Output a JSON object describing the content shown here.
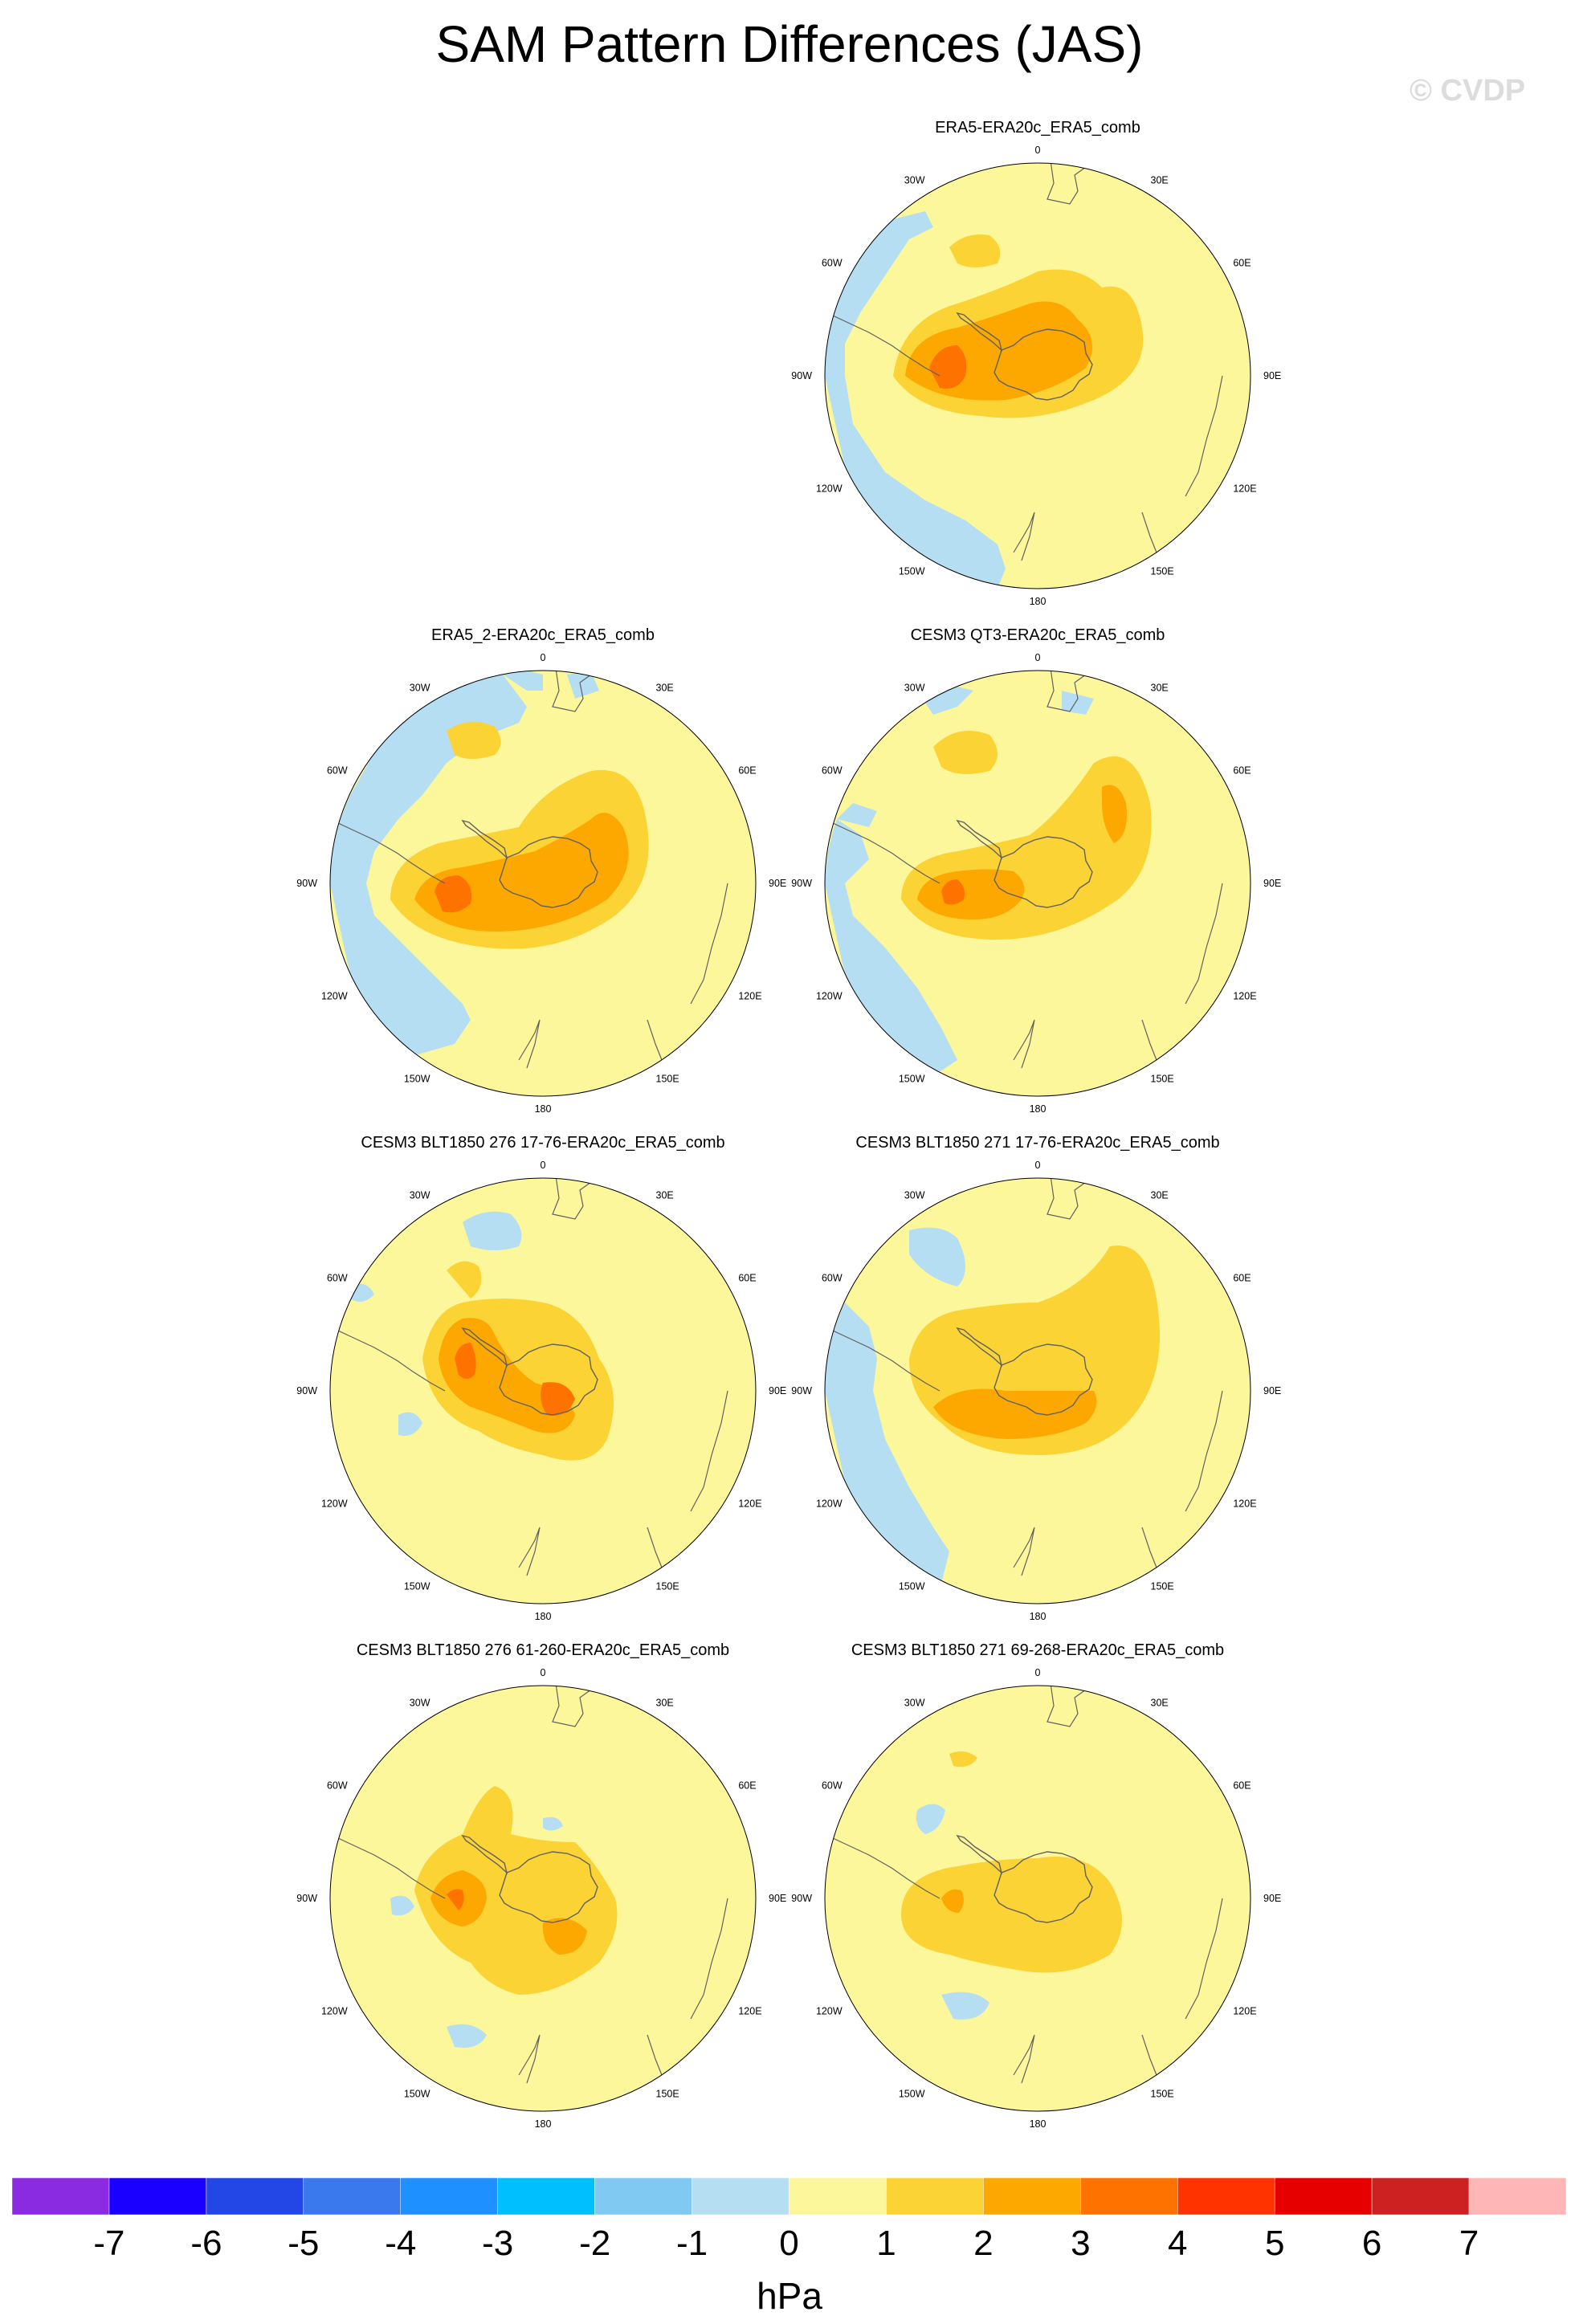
{
  "figure": {
    "title": "SAM Pattern Differences (JAS)",
    "watermark": "© CVDP",
    "units": "hPa"
  },
  "colors": {
    "land": "#a8a8a8",
    "coast": "#606060",
    "neg_1": "#b5def3",
    "zero_1": "#fdf79b",
    "one_2": "#fbd335",
    "two_3": "#fda800",
    "three_4": "#fe7200"
  },
  "panels": [
    {
      "title": "ERA5-ERA20c_ERA5_comb"
    },
    {
      "title": "ERA5_2-ERA20c_ERA5_comb"
    },
    {
      "title": "CESM3 QT3-ERA20c_ERA5_comb"
    },
    {
      "title": "CESM3 BLT1850 276 17-76-ERA20c_ERA5_comb"
    },
    {
      "title": "CESM3 BLT1850 271 17-76-ERA20c_ERA5_comb"
    },
    {
      "title": "CESM3 BLT1850 276 61-260-ERA20c_ERA5_comb"
    },
    {
      "title": "CESM3 BLT1850 271 69-268-ERA20c_ERA5_comb"
    }
  ],
  "lon_labels": [
    "0",
    "30E",
    "60E",
    "90E",
    "120E",
    "150E",
    "180",
    "150W",
    "120W",
    "90W",
    "60W",
    "30W"
  ],
  "chart_data": {
    "type": "heatmap",
    "title": "SAM Pattern Differences (JAS)",
    "projection": "south polar stereographic",
    "variable": "sea level pressure pattern difference",
    "colorbar": {
      "units": "hPa",
      "levels": [
        -7,
        -6,
        -5,
        -4,
        -3,
        -2,
        -1,
        0,
        1,
        2,
        3,
        4,
        5,
        6,
        7
      ],
      "tick_labels": [
        "-7",
        "-6",
        "-5",
        "-4",
        "-3",
        "-2",
        "-1",
        "0",
        "1",
        "2",
        "3",
        "4",
        "5",
        "6",
        "7"
      ],
      "colors": [
        "#8a2be2",
        "#1a00ff",
        "#2346e6",
        "#3a78ed",
        "#1e90ff",
        "#00bfff",
        "#7fc9f2",
        "#b5def3",
        "#fdf79b",
        "#fbd335",
        "#fda800",
        "#fe7200",
        "#ff3300",
        "#e60000",
        "#cd2020",
        "#ffb6b6"
      ]
    },
    "panels": [
      "ERA5-ERA20c_ERA5_comb",
      "ERA5_2-ERA20c_ERA5_comb",
      "CESM3 QT3-ERA20c_ERA5_comb",
      "CESM3 BLT1850 276 17-76-ERA20c_ERA5_comb",
      "CESM3 BLT1850 271 17-76-ERA20c_ERA5_comb",
      "CESM3 BLT1850 276 61-260-ERA20c_ERA5_comb",
      "CESM3 BLT1850 271 69-268-ERA20c_ERA5_comb"
    ]
  }
}
